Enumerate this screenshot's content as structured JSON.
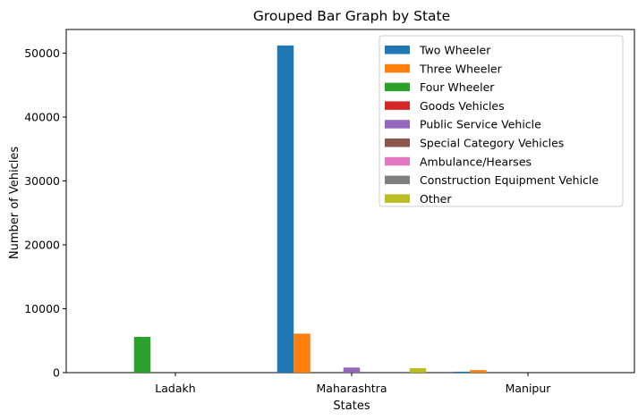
{
  "chart_data": {
    "type": "bar",
    "title": "Grouped Bar Graph by State",
    "xlabel": "States",
    "ylabel": "Number of Vehicles",
    "categories": [
      "Ladakh",
      "Maharashtra",
      "Manipur"
    ],
    "ylim": [
      0,
      53700
    ],
    "yticks": [
      0,
      10000,
      20000,
      30000,
      40000,
      50000
    ],
    "yticks_labels": [
      "0",
      "10000",
      "20000",
      "30000",
      "40000",
      "50000"
    ],
    "grid": false,
    "legend_position": "top-right",
    "series": [
      {
        "name": "Two Wheeler",
        "color": "#1f77b4",
        "values": [
          0,
          51200,
          150
        ]
      },
      {
        "name": "Three Wheeler",
        "color": "#ff7f0e",
        "values": [
          0,
          6100,
          400
        ]
      },
      {
        "name": "Four Wheeler",
        "color": "#2ca02c",
        "values": [
          5600,
          0,
          0
        ]
      },
      {
        "name": "Goods Vehicles",
        "color": "#d62728",
        "values": [
          0,
          0,
          0
        ]
      },
      {
        "name": "Public Service Vehicle",
        "color": "#9467bd",
        "values": [
          0,
          800,
          0
        ]
      },
      {
        "name": "Special Category Vehicles",
        "color": "#8c564b",
        "values": [
          0,
          0,
          0
        ]
      },
      {
        "name": "Ambulance/Hearses",
        "color": "#e377c2",
        "values": [
          0,
          0,
          0
        ]
      },
      {
        "name": "Construction Equipment Vehicle",
        "color": "#7f7f7f",
        "values": [
          0,
          0,
          0
        ]
      },
      {
        "name": "Other",
        "color": "#bcbd22",
        "values": [
          0,
          700,
          0
        ]
      }
    ]
  }
}
